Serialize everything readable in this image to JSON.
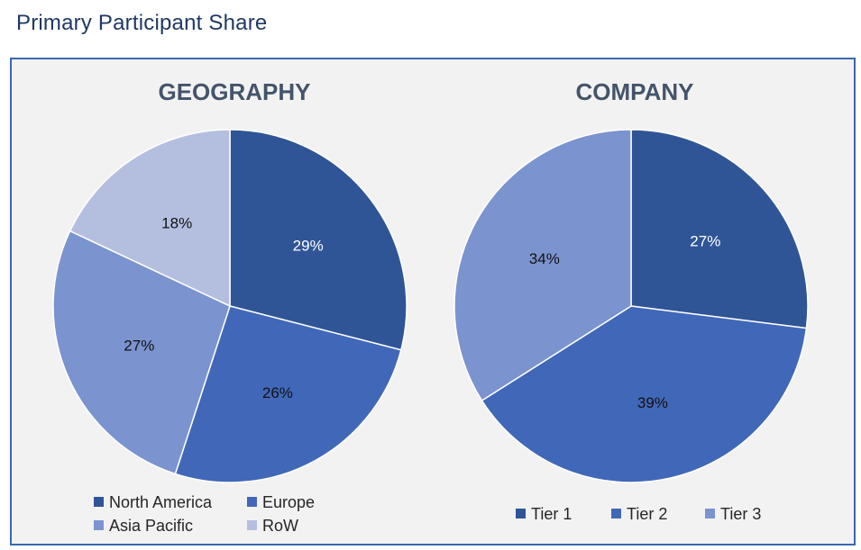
{
  "page": {
    "title": "Primary Participant Share"
  },
  "chart_data": [
    {
      "type": "pie",
      "title": "GEOGRAPHY",
      "categories": [
        "North America",
        "Europe",
        "Asia Pacific",
        "RoW"
      ],
      "values": [
        29,
        26,
        27,
        18
      ],
      "labels": [
        "29%",
        "26%",
        "27%",
        "18%"
      ],
      "colors": [
        "#2f5597",
        "#4168b8",
        "#7b93cf",
        "#b4bfe0"
      ],
      "label_colors": [
        "#ffffff",
        "#111111",
        "#111111",
        "#111111"
      ],
      "legend": "bottom"
    },
    {
      "type": "pie",
      "title": "COMPANY",
      "categories": [
        "Tier 1",
        "Tier 2",
        "Tier 3"
      ],
      "values": [
        27,
        39,
        34
      ],
      "labels": [
        "27%",
        "39%",
        "34%"
      ],
      "colors": [
        "#2f5597",
        "#4168b8",
        "#7b93cf"
      ],
      "label_colors": [
        "#ffffff",
        "#111111",
        "#111111"
      ],
      "legend": "bottom"
    }
  ]
}
